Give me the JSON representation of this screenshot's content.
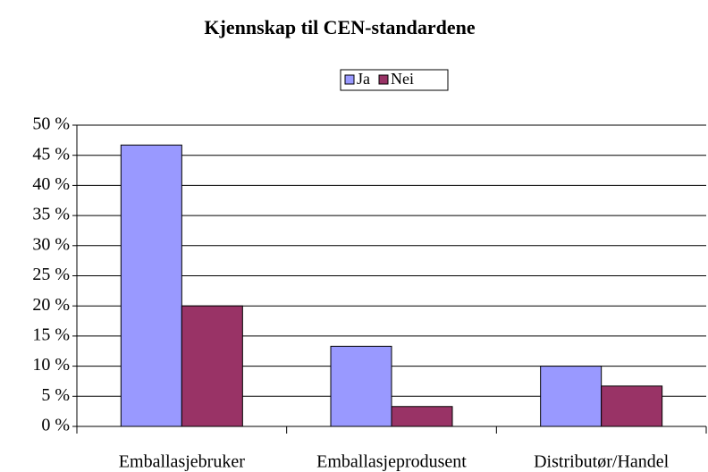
{
  "chart_data": {
    "type": "bar",
    "title": "Kjennskap til CEN-standardene",
    "categories": [
      "Emballasjebruker",
      "Emballasjeprodusent",
      "Distributør/Handel"
    ],
    "series": [
      {
        "name": "Ja",
        "color": "#9999ff",
        "values": [
          46.7,
          13.3,
          10
        ]
      },
      {
        "name": "Nei",
        "color": "#993366",
        "values": [
          20,
          3.3,
          6.7
        ]
      }
    ],
    "ylim": [
      0,
      50
    ],
    "yticks": [
      {
        "value": 0,
        "label": "0 %"
      },
      {
        "value": 5,
        "label": "5 %"
      },
      {
        "value": 10,
        "label": "10 %"
      },
      {
        "value": 15,
        "label": "15 %"
      },
      {
        "value": 20,
        "label": "20 %"
      },
      {
        "value": 25,
        "label": "25 %"
      },
      {
        "value": 30,
        "label": "30 %"
      },
      {
        "value": 35,
        "label": "35 %"
      },
      {
        "value": 40,
        "label": "40 %"
      },
      {
        "value": 45,
        "label": "45 %"
      },
      {
        "value": 50,
        "label": "50 %"
      }
    ],
    "grid": true,
    "legend": "top"
  }
}
